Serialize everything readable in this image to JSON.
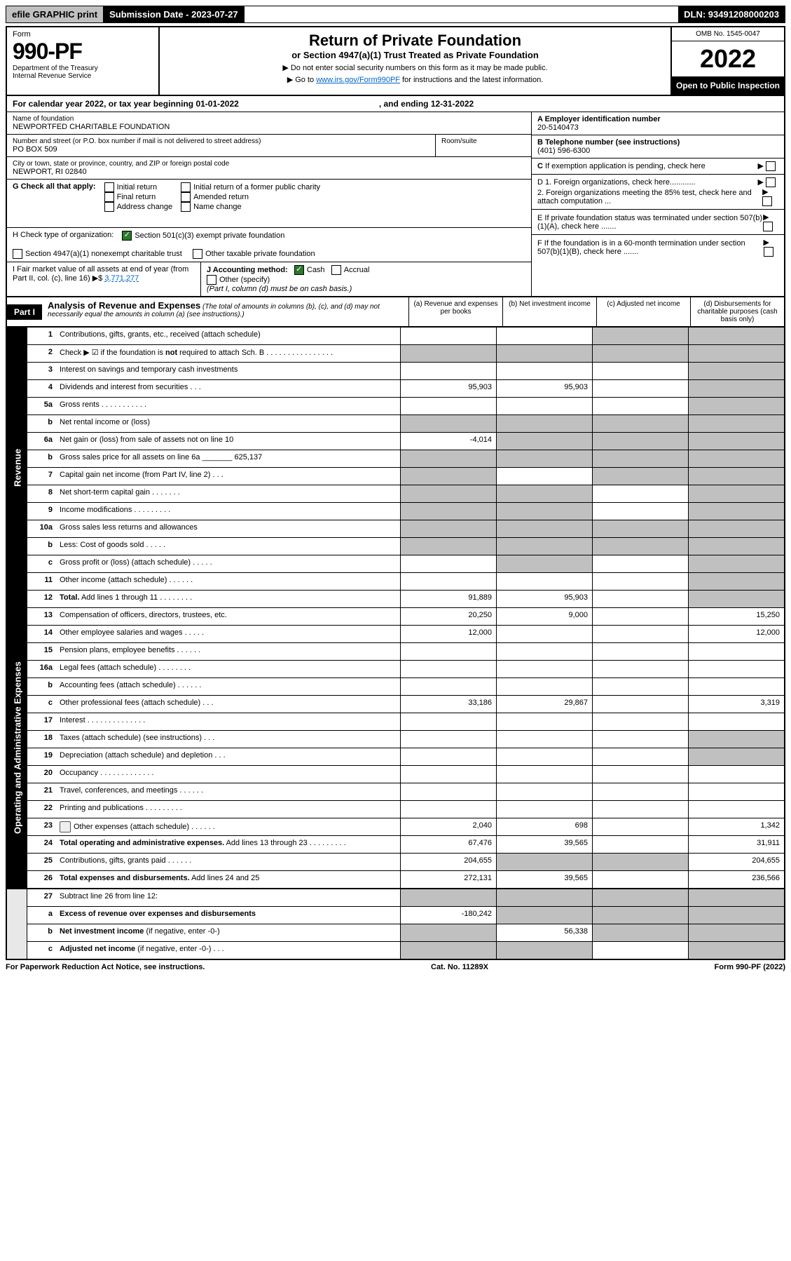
{
  "top_bar": {
    "efile": "efile GRAPHIC print",
    "submission_label": "Submission Date - 2023-07-27",
    "dln": "DLN: 93491208000203"
  },
  "header": {
    "form_label": "Form",
    "form_no": "990-PF",
    "dept": "Department of the Treasury",
    "irs": "Internal Revenue Service",
    "title": "Return of Private Foundation",
    "subtitle": "or Section 4947(a)(1) Trust Treated as Private Foundation",
    "instr1": "▶ Do not enter social security numbers on this form as it may be made public.",
    "instr2_pre": "▶ Go to ",
    "instr2_link": "www.irs.gov/Form990PF",
    "instr2_post": " for instructions and the latest information.",
    "omb": "OMB No. 1545-0047",
    "year": "2022",
    "open": "Open to Public Inspection"
  },
  "cal_year": {
    "text": "For calendar year 2022, or tax year beginning 01-01-2022",
    "ending": ", and ending 12-31-2022"
  },
  "info": {
    "name_label": "Name of foundation",
    "name": "NEWPORTFED CHARITABLE FOUNDATION",
    "addr_label": "Number and street (or P.O. box number if mail is not delivered to street address)",
    "addr": "PO BOX 509",
    "room_label": "Room/suite",
    "city_label": "City or town, state or province, country, and ZIP or foreign postal code",
    "city": "NEWPORT, RI  02840",
    "a_label": "A Employer identification number",
    "a_val": "20-5140473",
    "b_label": "B Telephone number (see instructions)",
    "b_val": "(401) 596-6300",
    "c_label": "C If exemption application is pending, check here",
    "d1": "D 1. Foreign organizations, check here............",
    "d2": "2. Foreign organizations meeting the 85% test, check here and attach computation ...",
    "e_label": "E  If private foundation status was terminated under section 507(b)(1)(A), check here .......",
    "f_label": "F  If the foundation is in a 60-month termination under section 507(b)(1)(B), check here .......",
    "g_label": "G Check all that apply:",
    "g_initial": "Initial return",
    "g_initial_former": "Initial return of a former public charity",
    "g_final": "Final return",
    "g_amended": "Amended return",
    "g_addr": "Address change",
    "g_name": "Name change",
    "h_label": "H Check type of organization:",
    "h_501c3": "Section 501(c)(3) exempt private foundation",
    "h_4947": "Section 4947(a)(1) nonexempt charitable trust",
    "h_other": "Other taxable private foundation",
    "i_label": "I Fair market value of all assets at end of year (from Part II, col. (c), line 16)",
    "i_arrow": "▶$",
    "i_val": "3,771,277",
    "j_label": "J Accounting method:",
    "j_cash": "Cash",
    "j_accrual": "Accrual",
    "j_other": "Other (specify)",
    "j_note": "(Part I, column (d) must be on cash basis.)"
  },
  "part1": {
    "label": "Part I",
    "title": "Analysis of Revenue and Expenses",
    "title_note": "(The total of amounts in columns (b), (c), and (d) may not necessarily equal the amounts in column (a) (see instructions).)",
    "col_a": "(a)  Revenue and expenses per books",
    "col_b": "(b)  Net investment income",
    "col_c": "(c)  Adjusted net income",
    "col_d": "(d)  Disbursements for charitable purposes (cash basis only)"
  },
  "sections": {
    "revenue": "Revenue",
    "expenses": "Operating and Administrative Expenses"
  },
  "rows": [
    {
      "n": "1",
      "lbl": "Contributions, gifts, grants, etc., received (attach schedule)",
      "a": "",
      "b": "",
      "c": "grey",
      "d": "grey"
    },
    {
      "n": "2",
      "lbl": "Check ▶ ☑ if the foundation is <b>not</b> required to attach Sch. B  .  .  .  .  .  .  .  .  .  .  .  .  .  .  .  .",
      "a": "grey",
      "b": "grey",
      "c": "grey",
      "d": "grey"
    },
    {
      "n": "3",
      "lbl": "Interest on savings and temporary cash investments",
      "a": "",
      "b": "",
      "c": "",
      "d": "grey"
    },
    {
      "n": "4",
      "lbl": "Dividends and interest from securities  .  .  .",
      "a": "95,903",
      "b": "95,903",
      "c": "",
      "d": "grey"
    },
    {
      "n": "5a",
      "lbl": "Gross rents  .  .  .  .  .  .  .  .  .  .  .",
      "a": "",
      "b": "",
      "c": "",
      "d": "grey"
    },
    {
      "n": "b",
      "lbl": "Net rental income or (loss)  ",
      "a": "grey",
      "b": "grey",
      "c": "grey",
      "d": "grey"
    },
    {
      "n": "6a",
      "lbl": "Net gain or (loss) from sale of assets not on line 10",
      "a": "-4,014",
      "b": "grey",
      "c": "grey",
      "d": "grey"
    },
    {
      "n": "b",
      "lbl": "Gross sales price for all assets on line 6a _______ 625,137",
      "a": "grey",
      "b": "grey",
      "c": "grey",
      "d": "grey"
    },
    {
      "n": "7",
      "lbl": "Capital gain net income (from Part IV, line 2)  .  .  .",
      "a": "grey",
      "b": "",
      "c": "grey",
      "d": "grey"
    },
    {
      "n": "8",
      "lbl": "Net short-term capital gain  .  .  .  .  .  .  .",
      "a": "grey",
      "b": "grey",
      "c": "",
      "d": "grey"
    },
    {
      "n": "9",
      "lbl": "Income modifications  .  .  .  .  .  .  .  .  .",
      "a": "grey",
      "b": "grey",
      "c": "",
      "d": "grey"
    },
    {
      "n": "10a",
      "lbl": "Gross sales less returns and allowances",
      "a": "grey",
      "b": "grey",
      "c": "grey",
      "d": "grey"
    },
    {
      "n": "b",
      "lbl": "Less: Cost of goods sold  .  .  .  .  .",
      "a": "grey",
      "b": "grey",
      "c": "grey",
      "d": "grey"
    },
    {
      "n": "c",
      "lbl": "Gross profit or (loss) (attach schedule)  .  .  .  .  .",
      "a": "",
      "b": "grey",
      "c": "",
      "d": "grey"
    },
    {
      "n": "11",
      "lbl": "Other income (attach schedule)  .  .  .  .  .  .",
      "a": "",
      "b": "",
      "c": "",
      "d": "grey"
    },
    {
      "n": "12",
      "lbl": "<b>Total.</b> Add lines 1 through 11  .  .  .  .  .  .  .  .",
      "a": "91,889",
      "b": "95,903",
      "c": "",
      "d": "grey",
      "bold": true
    }
  ],
  "exp_rows": [
    {
      "n": "13",
      "lbl": "Compensation of officers, directors, trustees, etc.",
      "a": "20,250",
      "b": "9,000",
      "c": "",
      "d": "15,250"
    },
    {
      "n": "14",
      "lbl": "Other employee salaries and wages  .  .  .  .  .",
      "a": "12,000",
      "b": "",
      "c": "",
      "d": "12,000"
    },
    {
      "n": "15",
      "lbl": "Pension plans, employee benefits  .  .  .  .  .  .",
      "a": "",
      "b": "",
      "c": "",
      "d": ""
    },
    {
      "n": "16a",
      "lbl": "Legal fees (attach schedule)  .  .  .  .  .  .  .  .",
      "a": "",
      "b": "",
      "c": "",
      "d": ""
    },
    {
      "n": "b",
      "lbl": "Accounting fees (attach schedule)  .  .  .  .  .  .",
      "a": "",
      "b": "",
      "c": "",
      "d": ""
    },
    {
      "n": "c",
      "lbl": "Other professional fees (attach schedule)  .  .  .",
      "a": "33,186",
      "b": "29,867",
      "c": "",
      "d": "3,319"
    },
    {
      "n": "17",
      "lbl": "Interest  .  .  .  .  .  .  .  .  .  .  .  .  .  .",
      "a": "",
      "b": "",
      "c": "",
      "d": ""
    },
    {
      "n": "18",
      "lbl": "Taxes (attach schedule) (see instructions)  .  .  .",
      "a": "",
      "b": "",
      "c": "",
      "d": "grey"
    },
    {
      "n": "19",
      "lbl": "Depreciation (attach schedule) and depletion  .  .  .",
      "a": "",
      "b": "",
      "c": "",
      "d": "grey"
    },
    {
      "n": "20",
      "lbl": "Occupancy  .  .  .  .  .  .  .  .  .  .  .  .  .",
      "a": "",
      "b": "",
      "c": "",
      "d": ""
    },
    {
      "n": "21",
      "lbl": "Travel, conferences, and meetings  .  .  .  .  .  .",
      "a": "",
      "b": "",
      "c": "",
      "d": ""
    },
    {
      "n": "22",
      "lbl": "Printing and publications  .  .  .  .  .  .  .  .  .",
      "a": "",
      "b": "",
      "c": "",
      "d": ""
    },
    {
      "n": "23",
      "lbl": "Other expenses (attach schedule)  .  .  .  .  .  .",
      "a": "2,040",
      "b": "698",
      "c": "",
      "d": "1,342",
      "icon": true
    },
    {
      "n": "24",
      "lbl": "<b>Total operating and administrative expenses.</b> Add lines 13 through 23  .  .  .  .  .  .  .  .  .",
      "a": "67,476",
      "b": "39,565",
      "c": "",
      "d": "31,911"
    },
    {
      "n": "25",
      "lbl": "Contributions, gifts, grants paid  .  .  .  .  .  .",
      "a": "204,655",
      "b": "grey",
      "c": "grey",
      "d": "204,655"
    },
    {
      "n": "26",
      "lbl": "<b>Total expenses and disbursements.</b> Add lines 24 and 25",
      "a": "272,131",
      "b": "39,565",
      "c": "",
      "d": "236,566"
    }
  ],
  "final_rows": [
    {
      "n": "27",
      "lbl": "Subtract line 26 from line 12:",
      "a": "grey",
      "b": "grey",
      "c": "grey",
      "d": "grey"
    },
    {
      "n": "a",
      "lbl": "<b>Excess of revenue over expenses and disbursements</b>",
      "a": "-180,242",
      "b": "grey",
      "c": "grey",
      "d": "grey"
    },
    {
      "n": "b",
      "lbl": "<b>Net investment income</b> (if negative, enter -0-)",
      "a": "grey",
      "b": "56,338",
      "c": "grey",
      "d": "grey"
    },
    {
      "n": "c",
      "lbl": "<b>Adjusted net income</b> (if negative, enter -0-)  .  .  .",
      "a": "grey",
      "b": "grey",
      "c": "",
      "d": "grey"
    }
  ],
  "footer": {
    "left": "For Paperwork Reduction Act Notice, see instructions.",
    "center": "Cat. No. 11289X",
    "right": "Form 990-PF (2022)"
  }
}
